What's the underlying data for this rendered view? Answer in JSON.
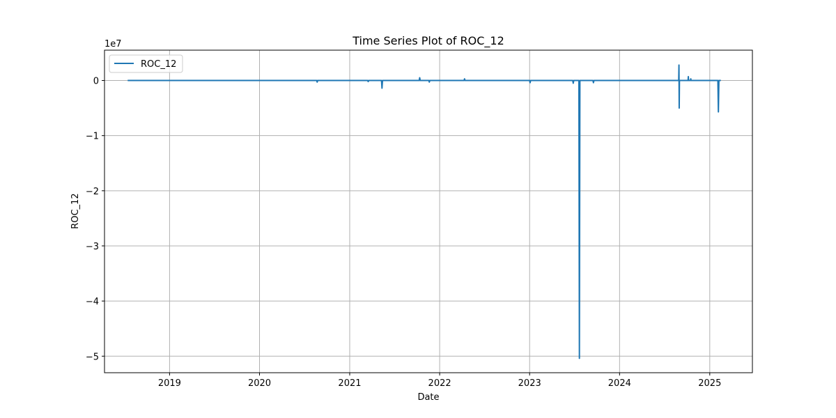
{
  "chart_data": {
    "type": "line",
    "title": "Time Series Plot of ROC_12",
    "xlabel": "Date",
    "ylabel": "ROC_12",
    "y_scale_label": "1e7",
    "y_scale": 10000000,
    "xlim": [
      "2018-04-12",
      "2025-06-23"
    ],
    "ylim": [
      -5.3,
      0.55
    ],
    "x_ticks": [
      {
        "date": "2019-01-01",
        "label": "2019"
      },
      {
        "date": "2020-01-01",
        "label": "2020"
      },
      {
        "date": "2021-01-01",
        "label": "2021"
      },
      {
        "date": "2022-01-01",
        "label": "2022"
      },
      {
        "date": "2023-01-01",
        "label": "2023"
      },
      {
        "date": "2024-01-01",
        "label": "2024"
      },
      {
        "date": "2025-01-01",
        "label": "2025"
      }
    ],
    "y_ticks": [
      {
        "value": 0,
        "label": "0"
      },
      {
        "value": -1,
        "label": "−1"
      },
      {
        "value": -2,
        "label": "−2"
      },
      {
        "value": -3,
        "label": "−3"
      },
      {
        "value": -4,
        "label": "−4"
      },
      {
        "value": -5,
        "label": "−5"
      }
    ],
    "grid": true,
    "legend_position": "top-left",
    "series": [
      {
        "name": "ROC_12",
        "color": "#1f77b4",
        "points": [
          [
            "2018-07-15",
            0
          ],
          [
            "2020-08-20",
            0
          ],
          [
            "2020-08-22",
            -0.03
          ],
          [
            "2020-08-24",
            0
          ],
          [
            "2021-03-15",
            0
          ],
          [
            "2021-03-17",
            -0.02
          ],
          [
            "2021-03-19",
            0
          ],
          [
            "2021-05-10",
            0
          ],
          [
            "2021-05-12",
            -0.14
          ],
          [
            "2021-05-14",
            0
          ],
          [
            "2021-10-10",
            0
          ],
          [
            "2021-10-12",
            0.05
          ],
          [
            "2021-10-14",
            0
          ],
          [
            "2021-11-18",
            0
          ],
          [
            "2021-11-20",
            -0.03
          ],
          [
            "2021-11-22",
            0
          ],
          [
            "2022-04-10",
            0
          ],
          [
            "2022-04-12",
            0.03
          ],
          [
            "2022-04-14",
            0
          ],
          [
            "2023-01-01",
            0
          ],
          [
            "2023-01-03",
            -0.04
          ],
          [
            "2023-01-05",
            0
          ],
          [
            "2023-06-25",
            0
          ],
          [
            "2023-06-27",
            -0.05
          ],
          [
            "2023-06-29",
            0
          ],
          [
            "2023-07-20",
            0
          ],
          [
            "2023-07-22",
            -5.04
          ],
          [
            "2023-07-24",
            0
          ],
          [
            "2023-09-15",
            0
          ],
          [
            "2023-09-17",
            -0.04
          ],
          [
            "2023-09-19",
            0
          ],
          [
            "2024-08-28",
            0
          ],
          [
            "2024-08-29",
            0.28
          ],
          [
            "2024-08-30",
            -0.5
          ],
          [
            "2024-08-31",
            0
          ],
          [
            "2024-10-05",
            0
          ],
          [
            "2024-10-06",
            0.07
          ],
          [
            "2024-10-07",
            0
          ],
          [
            "2024-10-15",
            0
          ],
          [
            "2024-10-16",
            0.03
          ],
          [
            "2024-10-17",
            0
          ],
          [
            "2025-02-03",
            0
          ],
          [
            "2025-02-05",
            -0.57
          ],
          [
            "2025-02-07",
            0
          ],
          [
            "2025-02-15",
            0
          ]
        ]
      }
    ]
  }
}
